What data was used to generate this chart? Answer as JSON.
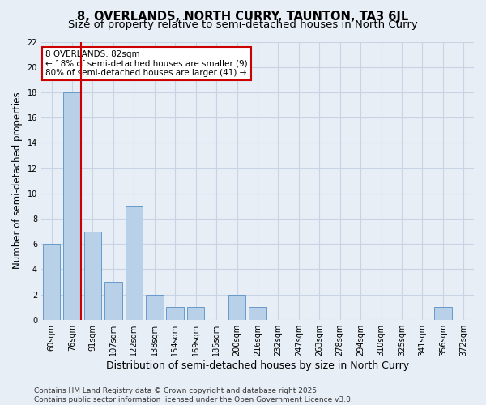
{
  "title": "8, OVERLANDS, NORTH CURRY, TAUNTON, TA3 6JL",
  "subtitle": "Size of property relative to semi-detached houses in North Curry",
  "xlabel": "Distribution of semi-detached houses by size in North Curry",
  "ylabel": "Number of semi-detached properties",
  "categories": [
    "60sqm",
    "76sqm",
    "91sqm",
    "107sqm",
    "122sqm",
    "138sqm",
    "154sqm",
    "169sqm",
    "185sqm",
    "200sqm",
    "216sqm",
    "232sqm",
    "247sqm",
    "263sqm",
    "278sqm",
    "294sqm",
    "310sqm",
    "325sqm",
    "341sqm",
    "356sqm",
    "372sqm"
  ],
  "values": [
    6,
    18,
    7,
    3,
    9,
    2,
    1,
    1,
    0,
    2,
    1,
    0,
    0,
    0,
    0,
    0,
    0,
    0,
    0,
    1,
    0
  ],
  "bar_color": "#b8d0e8",
  "bar_edge_color": "#6699cc",
  "grid_color": "#c8d4e4",
  "background_color": "#e8eef6",
  "annotation_box_text": "8 OVERLANDS: 82sqm\n← 18% of semi-detached houses are smaller (9)\n80% of semi-detached houses are larger (41) →",
  "annotation_box_color": "#ffffff",
  "annotation_box_edge_color": "#cc0000",
  "vline_x": 1.42,
  "vline_color": "#cc0000",
  "ylim": [
    0,
    22
  ],
  "yticks": [
    0,
    2,
    4,
    6,
    8,
    10,
    12,
    14,
    16,
    18,
    20,
    22
  ],
  "footer": "Contains HM Land Registry data © Crown copyright and database right 2025.\nContains public sector information licensed under the Open Government Licence v3.0.",
  "title_fontsize": 10.5,
  "subtitle_fontsize": 9.5,
  "xlabel_fontsize": 9,
  "ylabel_fontsize": 8.5,
  "tick_fontsize": 7,
  "footer_fontsize": 6.5,
  "annot_fontsize": 7.5
}
